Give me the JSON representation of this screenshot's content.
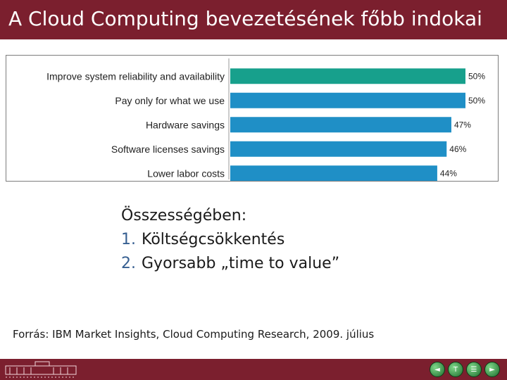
{
  "slide": {
    "title": "A Cloud Computing bevezetésének főbb indokai",
    "summary_heading": "Összességében:",
    "summary_items": [
      {
        "number": "1.",
        "text": "Költségcsökkentés"
      },
      {
        "number": "2.",
        "text": "Gyorsabb „time to value”"
      }
    ],
    "source": "Forrás: IBM Market Insights, Cloud Computing Research, 2009. július"
  },
  "chart_data": {
    "type": "bar",
    "orientation": "horizontal",
    "categories": [
      "Improve system reliability and availability",
      "Pay only for what we use",
      "Hardware savings",
      "Software licenses savings",
      "Lower labor costs"
    ],
    "values": [
      50,
      50,
      47,
      46,
      44
    ],
    "value_labels": [
      "50%",
      "50%",
      "47%",
      "46%",
      "44%"
    ],
    "highlight_index": 0,
    "colors": {
      "highlight": "#17a08c",
      "bar": "#1f8fc6"
    },
    "title": "",
    "xlabel": "",
    "ylabel": "",
    "xlim": [
      0,
      50
    ]
  },
  "footer": {
    "icons": [
      "prev-icon",
      "home-icon",
      "menu-icon",
      "next-icon"
    ]
  }
}
